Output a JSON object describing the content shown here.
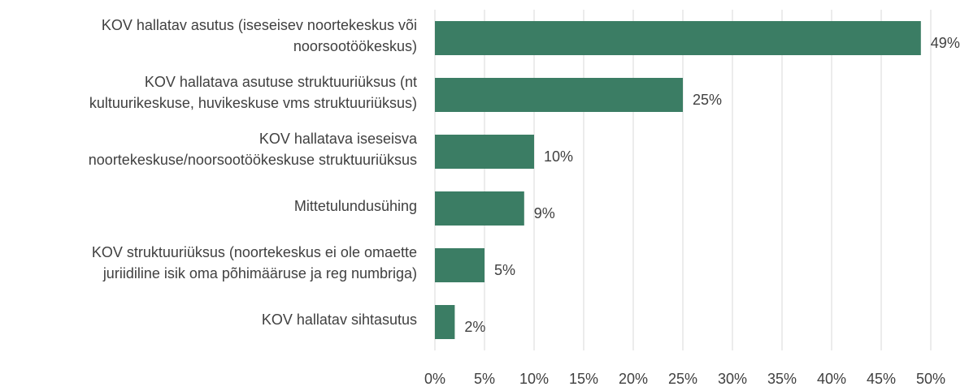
{
  "chart_data": {
    "type": "bar",
    "orientation": "horizontal",
    "categories": [
      "KOV hallatav asutus (iseseisev noortekeskus või\nnoorsootöökeskus)",
      "KOV hallatava asutuse struktuuriüksus (nt\nkultuurikeskuse, huvikeskuse vms struktuuriüksus)",
      "KOV hallatava iseseisva\nnoortekeskuse/noorsootöökeskuse struktuuriüksus",
      "Mittetulundusühing",
      "KOV struktuuriüksus (noortekeskus ei ole omaette\njuriidiline isik oma põhimääruse ja reg numbriga)",
      "KOV hallatav sihtasutus"
    ],
    "values": [
      49,
      25,
      10,
      9,
      5,
      2
    ],
    "value_labels": [
      "49%",
      "25%",
      "10%",
      "9%",
      "5%",
      "2%"
    ],
    "color": "#3b7d64",
    "xlim": [
      0,
      50
    ],
    "xticks": [
      {
        "value": 0,
        "label": "0%"
      },
      {
        "value": 5,
        "label": "5%"
      },
      {
        "value": 10,
        "label": "10%"
      },
      {
        "value": 15,
        "label": "15%"
      },
      {
        "value": 20,
        "label": "20%"
      },
      {
        "value": 25,
        "label": "25%"
      },
      {
        "value": 30,
        "label": "30%"
      },
      {
        "value": 35,
        "label": "35%"
      },
      {
        "value": 40,
        "label": "40%"
      },
      {
        "value": 45,
        "label": "45%"
      },
      {
        "value": 50,
        "label": "50%"
      }
    ],
    "grid": true
  }
}
